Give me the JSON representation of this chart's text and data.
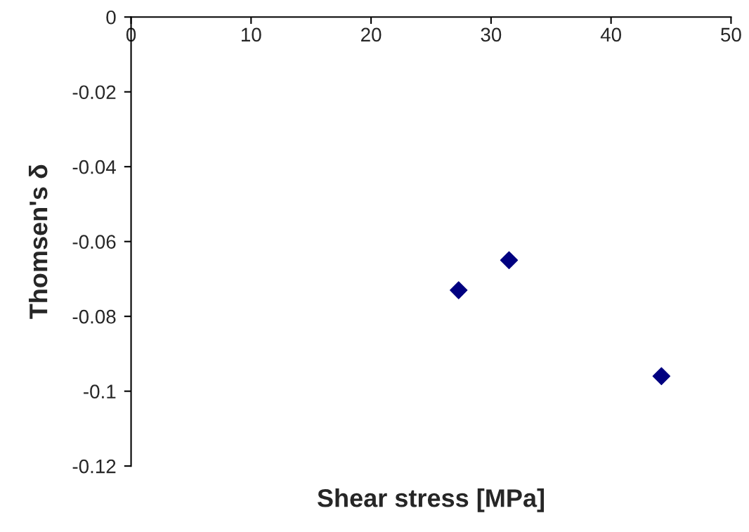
{
  "chart_data": {
    "type": "scatter",
    "xlabel": "Shear stress [MPa]",
    "ylabel": "Thomsen's δ",
    "x": [
      27.3,
      31.5,
      44.2
    ],
    "series": [
      {
        "color": "#000080",
        "values": [
          -0.073,
          -0.065,
          -0.096
        ]
      }
    ],
    "marker": "diamond",
    "grid": false,
    "xlim": [
      0,
      50
    ],
    "xticks": [
      0,
      10,
      20,
      30,
      40,
      50
    ],
    "ylim": [
      -0.12,
      0
    ],
    "yticks": [
      -0.12,
      -0.1,
      -0.08,
      -0.06,
      -0.04,
      -0.02,
      0
    ]
  }
}
